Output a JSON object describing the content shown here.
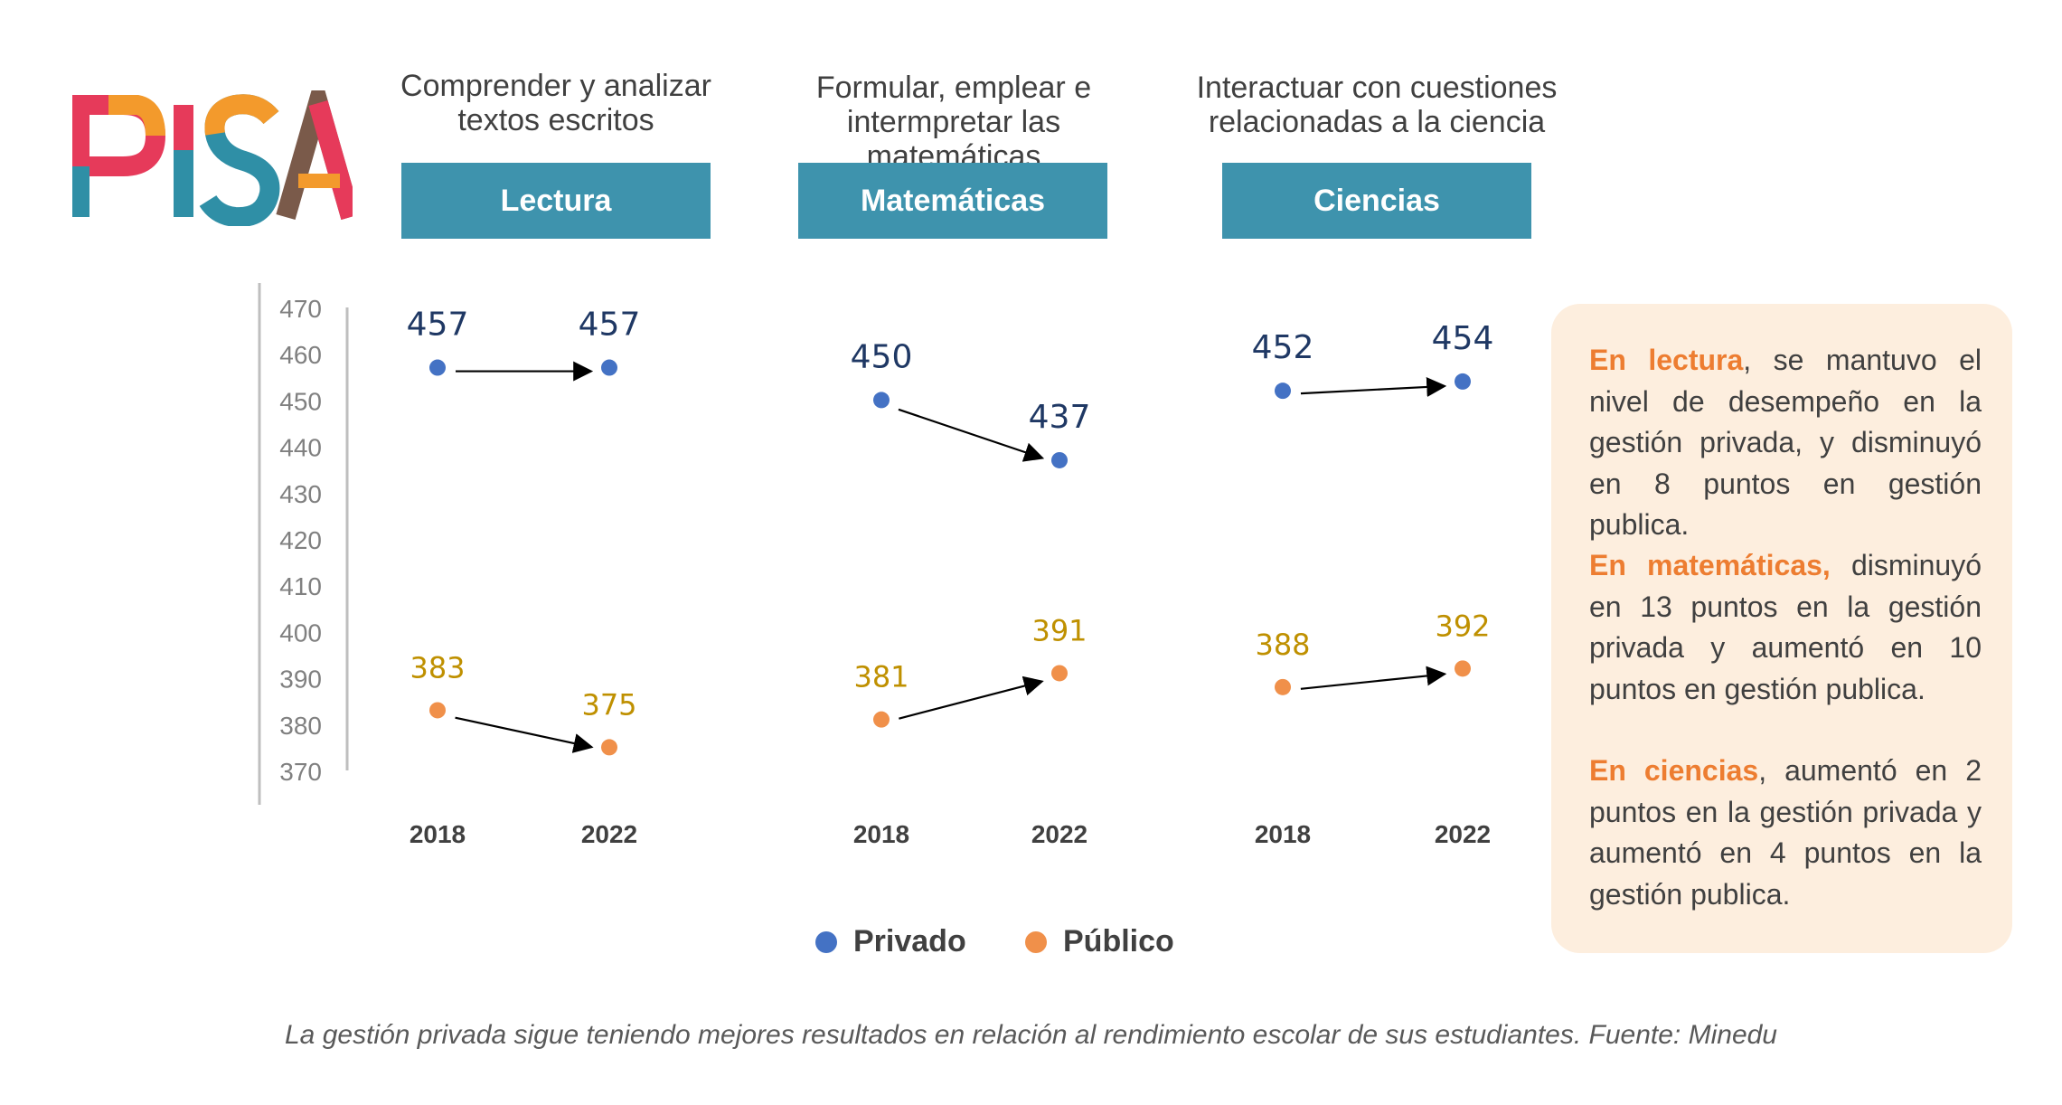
{
  "logo": {
    "text": "PISA"
  },
  "subjects": [
    {
      "description": "Comprender y analizar textos escritos",
      "label": "Lectura"
    },
    {
      "description": "Formular, emplear e intermpretar las matemáticas",
      "label": "Matemáticas"
    },
    {
      "description": "Interactuar con cuestiones relacionadas a la ciencia",
      "label": "Ciencias"
    }
  ],
  "chart_data": {
    "type": "scatter",
    "ylim": [
      370,
      470
    ],
    "yticks": [
      "470",
      "460",
      "450",
      "440",
      "430",
      "420",
      "410",
      "400",
      "390",
      "380",
      "370"
    ],
    "x": [
      "2018",
      "2022"
    ],
    "panels": [
      {
        "subject": "Lectura",
        "series": [
          {
            "name": "Privado",
            "values": [
              457,
              457
            ],
            "labels": [
              "457",
              "457"
            ]
          },
          {
            "name": "Público",
            "values": [
              383,
              375
            ],
            "labels": [
              "383",
              "375"
            ]
          }
        ]
      },
      {
        "subject": "Matemáticas",
        "series": [
          {
            "name": "Privado",
            "values": [
              450,
              437
            ],
            "labels": [
              "450",
              "437"
            ]
          },
          {
            "name": "Público",
            "values": [
              381,
              391
            ],
            "labels": [
              "381",
              "391"
            ]
          }
        ]
      },
      {
        "subject": "Ciencias",
        "series": [
          {
            "name": "Privado",
            "values": [
              452,
              454
            ],
            "labels": [
              "452",
              "454"
            ]
          },
          {
            "name": "Público",
            "values": [
              388,
              392
            ],
            "labels": [
              "388",
              "392"
            ]
          }
        ]
      }
    ],
    "legend": [
      {
        "name": "Privado",
        "color": "#4472c4"
      },
      {
        "name": "Público",
        "color": "#f0904a"
      }
    ],
    "colors": {
      "privado_dot": "#4472c4",
      "publico_dot": "#f0904a",
      "privado_label": "#1f3864",
      "publico_label": "#bf9000"
    },
    "legend_position": "bottom"
  },
  "notes": [
    {
      "highlight": "En lectura",
      "text": ", se mantuvo el nivel de desempeño en la gestión privada, y disminuyó en 8 puntos en gestión publica."
    },
    {
      "highlight": "En matemáticas,",
      "text": " disminuyó en 13 puntos en la gestión privada y aumentó en 10 puntos en gestión publica."
    },
    {
      "highlight": "En ciencias",
      "text": ", aumentó en 2 puntos en la gestión privada y aumentó en 4 puntos en la gestión publica."
    }
  ],
  "caption": "La gestión privada sigue teniendo mejores resultados en relación al rendimiento escolar de sus estudiantes. Fuente: Minedu",
  "colors": {
    "header": "#3e93ad",
    "note_bg": "#fdeede",
    "highlight": "#ed7d31"
  }
}
